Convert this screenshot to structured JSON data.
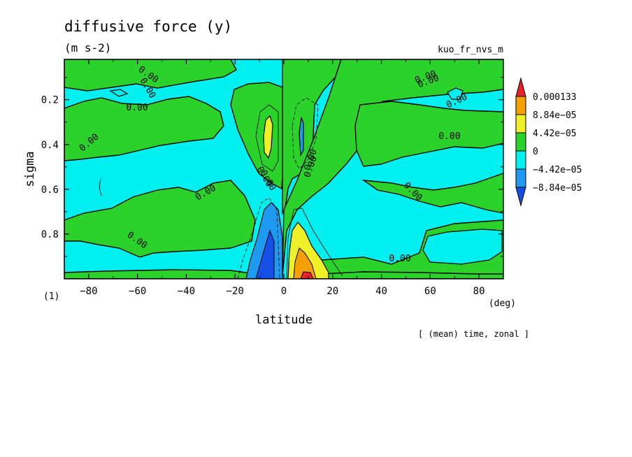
{
  "chart_data": {
    "type": "heatmap",
    "title": "diffusive force (y)",
    "units": "(m s-2)",
    "dataset_label": "kuo_fr_nvs_m",
    "xlabel": "latitude",
    "ylabel": "sigma",
    "x_unit": "(deg)",
    "panel_label": "(1)",
    "footer": "[ (mean) time, zonal ]",
    "xlim": [
      -90,
      90
    ],
    "ylim": [
      0.02,
      1.0
    ],
    "y_inverted": true,
    "xticks": [
      -80,
      -60,
      -40,
      -20,
      0,
      20,
      40,
      60,
      80
    ],
    "xtick_labels": [
      "−80",
      "−60",
      "−40",
      "−20",
      "0",
      "20",
      "40",
      "60",
      "80"
    ],
    "yticks": [
      0.2,
      0.4,
      0.6,
      0.8
    ],
    "ytick_labels": [
      "0.2",
      "0.4",
      "0.6",
      "0.8"
    ],
    "colorbar": {
      "labels": [
        "0.000133",
        "8.84e−05",
        "4.42e−05",
        "0",
        "−4.42e−05",
        "−8.84e−05"
      ],
      "colors": [
        "#e8232a",
        "#f5a000",
        "#f0f028",
        "#2ad22a",
        "#00f0f0",
        "#1e9bf0",
        "#1450e6"
      ]
    },
    "contour_label": "0.00",
    "contour_label_count": 16,
    "features": [
      {
        "lat": -7,
        "sigma": 0.98,
        "value": "< -8.84e-05",
        "desc": "negative core near surface"
      },
      {
        "lat": 7,
        "sigma": 0.98,
        "value": "> 0.000133",
        "desc": "positive core near surface"
      },
      {
        "lat": -7,
        "sigma": 0.32,
        "value": "4.42e-05 to 8.84e-05",
        "desc": "upper positive maximum"
      },
      {
        "lat": 9,
        "sigma": 0.35,
        "value": "-4.42e-05 to -8.84e-05",
        "desc": "upper negative minimum"
      }
    ]
  }
}
